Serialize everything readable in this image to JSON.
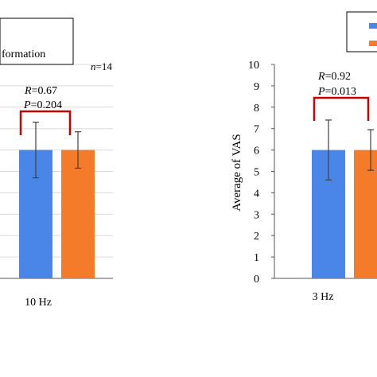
{
  "chart_data": [
    {
      "type": "bar",
      "categories": [
        "10 Hz"
      ],
      "series": [
        {
          "values": [
            6.0
          ],
          "error": [
            1.3
          ],
          "color": "#4a86e8"
        },
        {
          "values": [
            6.0
          ],
          "error": [
            0.85
          ],
          "color": "#f47b2a"
        }
      ],
      "ylim": [
        0,
        10
      ],
      "grid": true,
      "legend_text": "formation",
      "legend_placement": "top-left (cropped)",
      "annotations": {
        "n": "n=14",
        "R": "R=0.67",
        "P": "P=0.204"
      },
      "significance_bracket_color": "#cc0000"
    },
    {
      "type": "bar",
      "categories": [
        "3 Hz"
      ],
      "series": [
        {
          "values": [
            6.0
          ],
          "error": [
            1.4
          ],
          "color": "#4a86e8"
        },
        {
          "values": [
            6.0
          ],
          "error": [
            0.95
          ],
          "color": "#f47b2a"
        }
      ],
      "ylim": [
        0,
        10
      ],
      "yticks": [
        "0",
        "1",
        "2",
        "3",
        "4",
        "5",
        "6",
        "7",
        "8",
        "9",
        "10"
      ],
      "ylabel": "Average of VAS",
      "grid": false,
      "legend_placement": "top-right (cropped)",
      "annotations": {
        "R": "R=0.92",
        "P": "P=0.013"
      },
      "significance_bracket_color": "#cc0000"
    }
  ]
}
